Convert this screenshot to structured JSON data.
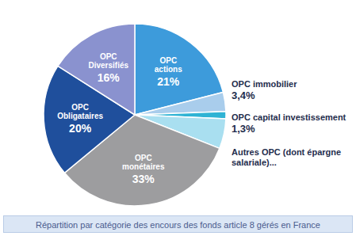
{
  "chart_data": {
    "type": "pie",
    "title": "Répartition par catégorie des encours des fonds article 8 gérés en France",
    "categories": [
      "OPC actions",
      "OPC immobilier",
      "OPC capital investissement",
      "Autres OPC (dont épargne salariale)...",
      "OPC monétaires",
      "OPC Obligataires",
      "OPC Diversifiés"
    ],
    "values": [
      21,
      3.4,
      1.3,
      5.3,
      33,
      20,
      16
    ],
    "value_labels": [
      "21%",
      "3,4%",
      "1,3%",
      null,
      "33%",
      "20%",
      "16%"
    ],
    "colors": [
      "#3d9bdb",
      "#a9cdec",
      "#2fb3d4",
      "#a9dff0",
      "#9d9d9f",
      "#1f4f9c",
      "#8a92cf"
    ],
    "data_labels": true
  }
}
